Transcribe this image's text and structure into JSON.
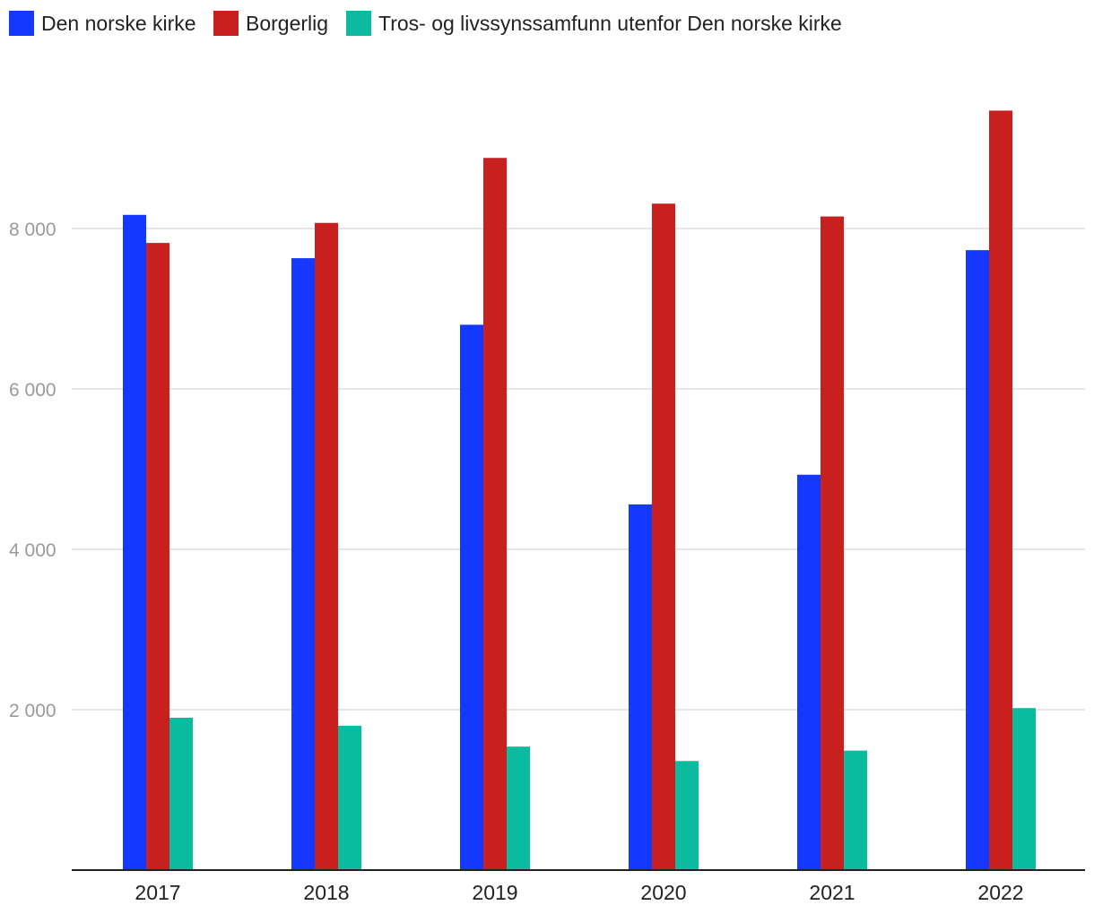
{
  "chart_data": {
    "type": "bar",
    "title": "",
    "xlabel": "",
    "ylabel": "",
    "categories": [
      "2017",
      "2018",
      "2019",
      "2020",
      "2021",
      "2022"
    ],
    "series": [
      {
        "name": "Den norske kirke",
        "color": "#1438ff",
        "values": [
          8170,
          7630,
          6800,
          4560,
          4930,
          7730
        ]
      },
      {
        "name": "Borgerlig",
        "color": "#c8201f",
        "values": [
          7820,
          8070,
          8880,
          8310,
          8150,
          9470
        ]
      },
      {
        "name": "Tros- og livssynssamfunn utenfor Den norske kirke",
        "color": "#0bbba0",
        "values": [
          1900,
          1800,
          1540,
          1360,
          1490,
          2020
        ]
      }
    ],
    "ylim": [
      0,
      10000
    ],
    "y_ticks": [
      2000,
      4000,
      6000,
      8000
    ],
    "y_tick_labels": [
      "2 000",
      "4 000",
      "6 000",
      "8 000"
    ],
    "grid": true,
    "legend_position": "top-left"
  }
}
